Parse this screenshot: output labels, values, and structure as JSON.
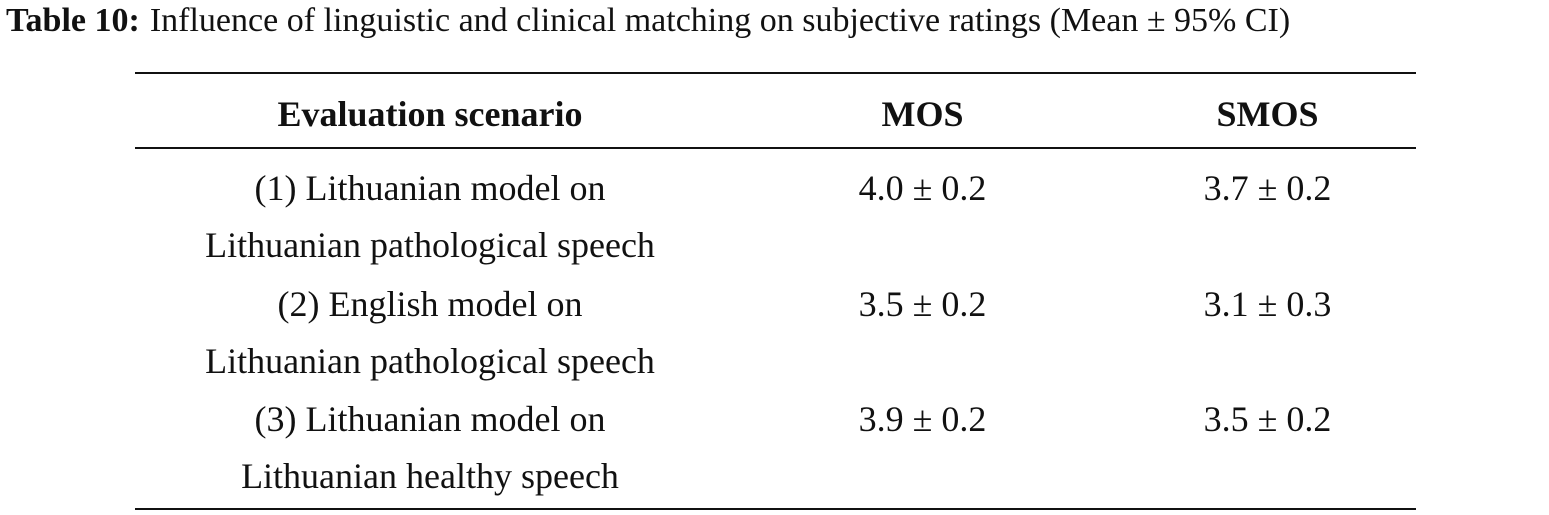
{
  "caption": {
    "label": "Table 10:",
    "text": "Influence of linguistic and clinical matching on subjective ratings (Mean ± 95% CI)"
  },
  "table": {
    "header": [
      "Evaluation scenario",
      "MOS",
      "SMOS"
    ],
    "rows": [
      {
        "scenario": [
          "(1) Lithuanian model on",
          "Lithuanian pathological speech"
        ],
        "mos": "4.0 ± 0.2",
        "smos": "3.7 ± 0.2"
      },
      {
        "scenario": [
          "(2) English model on",
          "Lithuanian pathological speech"
        ],
        "mos": "3.5 ± 0.2",
        "smos": "3.1 ± 0.3"
      },
      {
        "scenario": [
          "(3) Lithuanian model on",
          "Lithuanian healthy speech"
        ],
        "mos": "3.9 ± 0.2",
        "smos": "3.5 ± 0.2"
      }
    ]
  }
}
